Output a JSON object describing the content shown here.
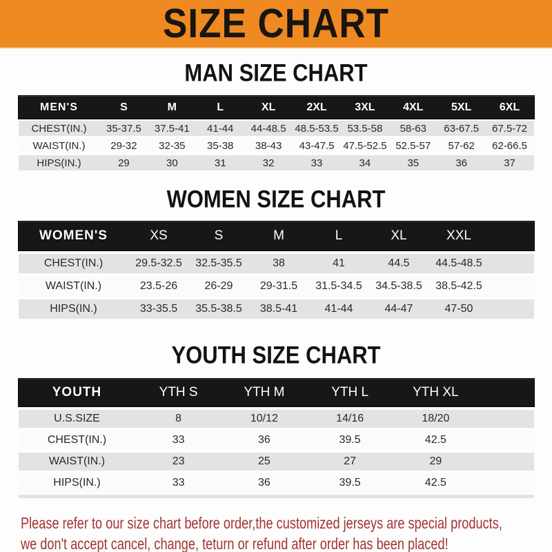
{
  "banner": {
    "title": "SIZE CHART",
    "bg_color": "#ee8a21",
    "text_color": "#181512"
  },
  "sections": [
    {
      "heading": "MAN SIZE CHART",
      "label": "MEN'S",
      "columns": [
        "S",
        "M",
        "L",
        "XL",
        "2XL",
        "3XL",
        "4XL",
        "5XL",
        "6XL"
      ],
      "rows": [
        {
          "label": "CHEST(IN.)",
          "values": [
            "35-37.5",
            "37.5-41",
            "41-44",
            "44-48.5",
            "48.5-53.5",
            "53.5-58",
            "58-63",
            "63-67.5",
            "67.5-72"
          ]
        },
        {
          "label": "WAIST(IN.)",
          "values": [
            "29-32",
            "32-35",
            "35-38",
            "38-43",
            "43-47.5",
            "47.5-52.5",
            "52.5-57",
            "57-62",
            "62-66.5"
          ]
        },
        {
          "label": "HIPS(IN.)",
          "values": [
            "29",
            "30",
            "31",
            "32",
            "33",
            "34",
            "35",
            "36",
            "37"
          ]
        }
      ]
    },
    {
      "heading": "WOMEN SIZE CHART",
      "label": "WOMEN'S",
      "columns": [
        "XS",
        "S",
        "M",
        "L",
        "XL",
        "XXL"
      ],
      "rows": [
        {
          "label": "CHEST(IN.)",
          "values": [
            "29.5-32.5",
            "32.5-35.5",
            "38",
            "41",
            "44.5",
            "44.5-48.5"
          ]
        },
        {
          "label": "WAIST(IN.)",
          "values": [
            "23.5-26",
            "26-29",
            "29-31.5",
            "31.5-34.5",
            "34.5-38.5",
            "38.5-42.5"
          ]
        },
        {
          "label": "HIPS(IN.)",
          "values": [
            "33-35.5",
            "35.5-38.5",
            "38.5-41",
            "41-44",
            "44-47",
            "47-50"
          ]
        }
      ]
    },
    {
      "heading": "YOUTH SIZE CHART",
      "label": "YOUTH",
      "columns": [
        "YTH S",
        "YTH M",
        "YTH L",
        "YTH XL"
      ],
      "rows": [
        {
          "label": "U.S.SIZE",
          "values": [
            "8",
            "10/12",
            "14/16",
            "18/20"
          ]
        },
        {
          "label": "CHEST(IN.)",
          "values": [
            "33",
            "36",
            "39.5",
            "42.5"
          ]
        },
        {
          "label": "WAIST(IN.)",
          "values": [
            "23",
            "25",
            "27",
            "29"
          ]
        },
        {
          "label": "HIPS(IN.)",
          "values": [
            "33",
            "36",
            "39.5",
            "42.5"
          ]
        }
      ]
    }
  ],
  "footer": {
    "line1": "Please refer to our size chart before order,the customized jerseys are special products,",
    "line2": "we don't accept cancel, change, teturn or refund after order has been placed!",
    "text_color": "#a23431"
  },
  "colors": {
    "banner_orange": "#ee8a21",
    "header_bar_black": "#171717",
    "row_gray": "#e3e3e3",
    "row_white": "#fbfbfb",
    "notice_red": "#a23431"
  }
}
